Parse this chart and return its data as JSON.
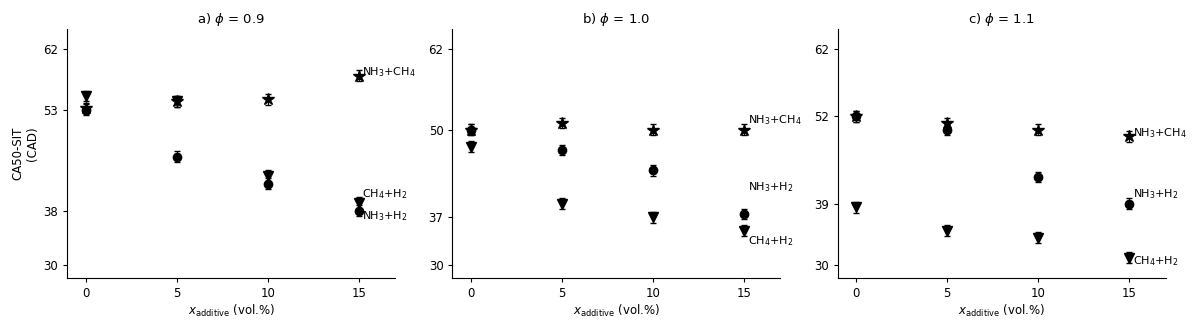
{
  "panels": [
    {
      "title_text": "a) ",
      "title_phi": "\\phi",
      "title_val": " = 0.9",
      "xlim": [
        -1,
        17
      ],
      "ylim": [
        28,
        65
      ],
      "yticks": [
        30,
        38,
        53,
        62
      ],
      "xticks": [
        0,
        5,
        10,
        15
      ],
      "series": {
        "NH3_CH4": {
          "x": [
            0,
            5,
            10,
            15
          ],
          "y": [
            53.2,
            54.2,
            54.5,
            58.0
          ],
          "yerr": [
            0.8,
            0.8,
            0.8,
            0.8
          ]
        },
        "NH3_H2": {
          "x": [
            0,
            5,
            10,
            15
          ],
          "y": [
            53.0,
            46.0,
            42.0,
            38.0
          ],
          "yerr": [
            0.8,
            0.8,
            0.8,
            0.8
          ]
        },
        "CH4_H2": {
          "x": [
            0,
            5,
            10,
            15
          ],
          "y": [
            55.0,
            54.2,
            43.2,
            39.2
          ],
          "yerr": [
            0.8,
            0.8,
            0.8,
            0.8
          ]
        }
      },
      "annot": {
        "NH3_CH4": [
          58.5,
          "NH$_3$+CH$_4$"
        ],
        "CH4_H2": [
          40.5,
          "CH$_4$+H$_2$"
        ],
        "NH3_H2": [
          37.2,
          "NH$_3$+H$_2$"
        ]
      }
    },
    {
      "title_text": "b) ",
      "title_phi": "\\phi",
      "title_val": " = 1.0",
      "xlim": [
        -1,
        17
      ],
      "ylim": [
        28,
        65
      ],
      "yticks": [
        30,
        37,
        50,
        62
      ],
      "xticks": [
        0,
        5,
        10,
        15
      ],
      "series": {
        "NH3_CH4": {
          "x": [
            0,
            5,
            10,
            15
          ],
          "y": [
            50.0,
            51.0,
            50.0,
            50.0
          ],
          "yerr": [
            0.8,
            0.8,
            0.8,
            0.8
          ]
        },
        "NH3_H2": {
          "x": [
            0,
            5,
            10,
            15
          ],
          "y": [
            50.0,
            47.0,
            44.0,
            37.5
          ],
          "yerr": [
            0.8,
            0.8,
            0.8,
            0.8
          ]
        },
        "CH4_H2": {
          "x": [
            0,
            5,
            10,
            15
          ],
          "y": [
            47.5,
            39.0,
            37.0,
            35.0
          ],
          "yerr": [
            0.8,
            0.8,
            0.8,
            0.8
          ]
        }
      },
      "annot": {
        "NH3_CH4": [
          51.5,
          "NH$_3$+CH$_4$"
        ],
        "NH3_H2": [
          41.5,
          "NH$_3$+H$_2$"
        ],
        "CH4_H2": [
          33.5,
          "CH$_4$+H$_2$"
        ]
      }
    },
    {
      "title_text": "c) ",
      "title_phi": "\\phi",
      "title_val": " = 1.1",
      "xlim": [
        -1,
        17
      ],
      "ylim": [
        28,
        65
      ],
      "yticks": [
        30,
        39,
        52,
        62
      ],
      "xticks": [
        0,
        5,
        10,
        15
      ],
      "series": {
        "NH3_CH4": {
          "x": [
            0,
            5,
            10,
            15
          ],
          "y": [
            52.0,
            51.0,
            50.0,
            49.0
          ],
          "yerr": [
            0.8,
            0.8,
            0.8,
            0.8
          ]
        },
        "NH3_H2": {
          "x": [
            0,
            5,
            10,
            15
          ],
          "y": [
            52.0,
            50.0,
            43.0,
            39.0
          ],
          "yerr": [
            0.8,
            0.8,
            0.8,
            0.8
          ]
        },
        "CH4_H2": {
          "x": [
            0,
            5,
            10,
            15
          ],
          "y": [
            38.5,
            35.0,
            34.0,
            31.0
          ],
          "yerr": [
            0.8,
            0.8,
            0.8,
            0.8
          ]
        }
      },
      "annot": {
        "NH3_CH4": [
          49.5,
          "NH$_3$+CH$_4$"
        ],
        "NH3_H2": [
          40.5,
          "NH$_3$+H$_2$"
        ],
        "CH4_H2": [
          30.5,
          "CH$_4$+H$_2$"
        ]
      }
    }
  ],
  "ylabel_line1": "CA50-SIT",
  "ylabel_line2": "(CAD)",
  "xlabel": "$x_{\\mathrm{additive}}$ (vol.%)",
  "color": "black",
  "markersize_star": 9,
  "markersize_circle": 6,
  "markersize_tri": 7,
  "fontsize": 8.5,
  "title_fontsize": 9.5
}
